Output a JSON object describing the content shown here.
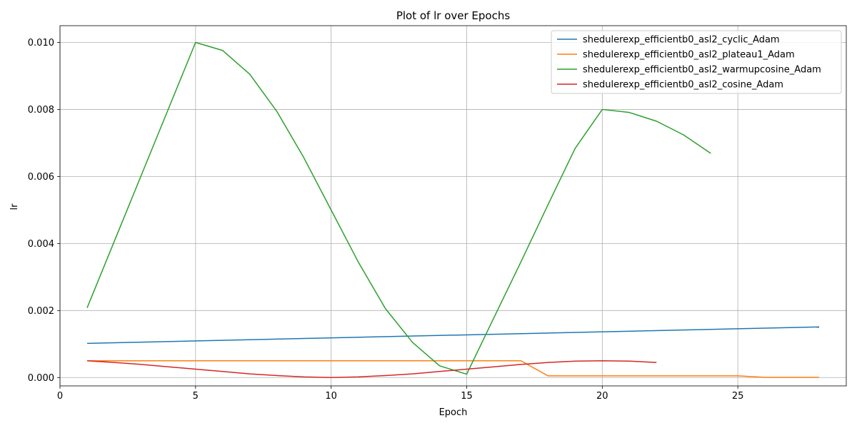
{
  "chart_data": {
    "type": "line",
    "title": "Plot of lr over Epochs",
    "xlabel": "Epoch",
    "ylabel": "lr",
    "xlim": [
      0,
      29
    ],
    "ylim": [
      -0.00025,
      0.0105
    ],
    "xticks": [
      0,
      5,
      10,
      15,
      20,
      25
    ],
    "yticks": [
      0.0,
      0.002,
      0.004,
      0.006,
      0.008,
      0.01
    ],
    "ytick_labels": [
      "0.000",
      "0.002",
      "0.004",
      "0.006",
      "0.008",
      "0.010"
    ],
    "grid": true,
    "legend_position": "upper right",
    "series": [
      {
        "name": "shedulerexp_efficientb0_asl2_cyclic_Adam",
        "color": "#1f77b4",
        "x": [
          1,
          28
        ],
        "y": [
          0.00102,
          0.00151
        ]
      },
      {
        "name": "shedulerexp_efficientb0_asl2_plateau1_Adam",
        "color": "#ff7f0e",
        "x": [
          1,
          2,
          3,
          4,
          5,
          6,
          7,
          8,
          9,
          10,
          11,
          12,
          13,
          14,
          15,
          16,
          17,
          18,
          19,
          20,
          21,
          22,
          23,
          24,
          25,
          26,
          27,
          28
        ],
        "y": [
          0.0005,
          0.0005,
          0.0005,
          0.0005,
          0.0005,
          0.0005,
          0.0005,
          0.0005,
          0.0005,
          0.0005,
          0.0005,
          0.0005,
          0.0005,
          0.0005,
          0.0005,
          0.0005,
          0.0005,
          5e-05,
          5e-05,
          5e-05,
          5e-05,
          5e-05,
          5e-05,
          5e-05,
          5e-05,
          5e-06,
          5e-06,
          5e-06
        ]
      },
      {
        "name": "shedulerexp_efficientb0_asl2_warmupcosine_Adam",
        "color": "#2ca02c",
        "x": [
          1,
          2,
          3,
          4,
          5,
          6,
          7,
          8,
          9,
          10,
          11,
          12,
          13,
          14,
          15,
          16,
          17,
          18,
          19,
          20,
          21,
          22,
          23,
          24
        ],
        "y": [
          0.00208,
          0.00406,
          0.00604,
          0.00802,
          0.01,
          0.00976,
          0.00905,
          0.00794,
          0.00655,
          0.005,
          0.00345,
          0.00206,
          0.00105,
          0.00035,
          0.0001,
          0.00178,
          0.00345,
          0.00516,
          0.00684,
          0.008,
          0.00791,
          0.00765,
          0.00724,
          0.00669
        ]
      },
      {
        "name": "shedulerexp_efficientb0_asl2_cosine_Adam",
        "color": "#d62728",
        "x": [
          1,
          2,
          3,
          4,
          5,
          6,
          7,
          8,
          9,
          10,
          11,
          12,
          13,
          14,
          15,
          16,
          17,
          18,
          19,
          20,
          21,
          22
        ],
        "y": [
          0.0005,
          0.00045,
          0.00039,
          0.00032,
          0.00025,
          0.00018,
          0.00011,
          6e-05,
          2e-05,
          0.0,
          2e-05,
          6e-05,
          0.00011,
          0.00018,
          0.00025,
          0.00032,
          0.00039,
          0.00045,
          0.00049,
          0.0005,
          0.00049,
          0.00045
        ]
      }
    ]
  }
}
